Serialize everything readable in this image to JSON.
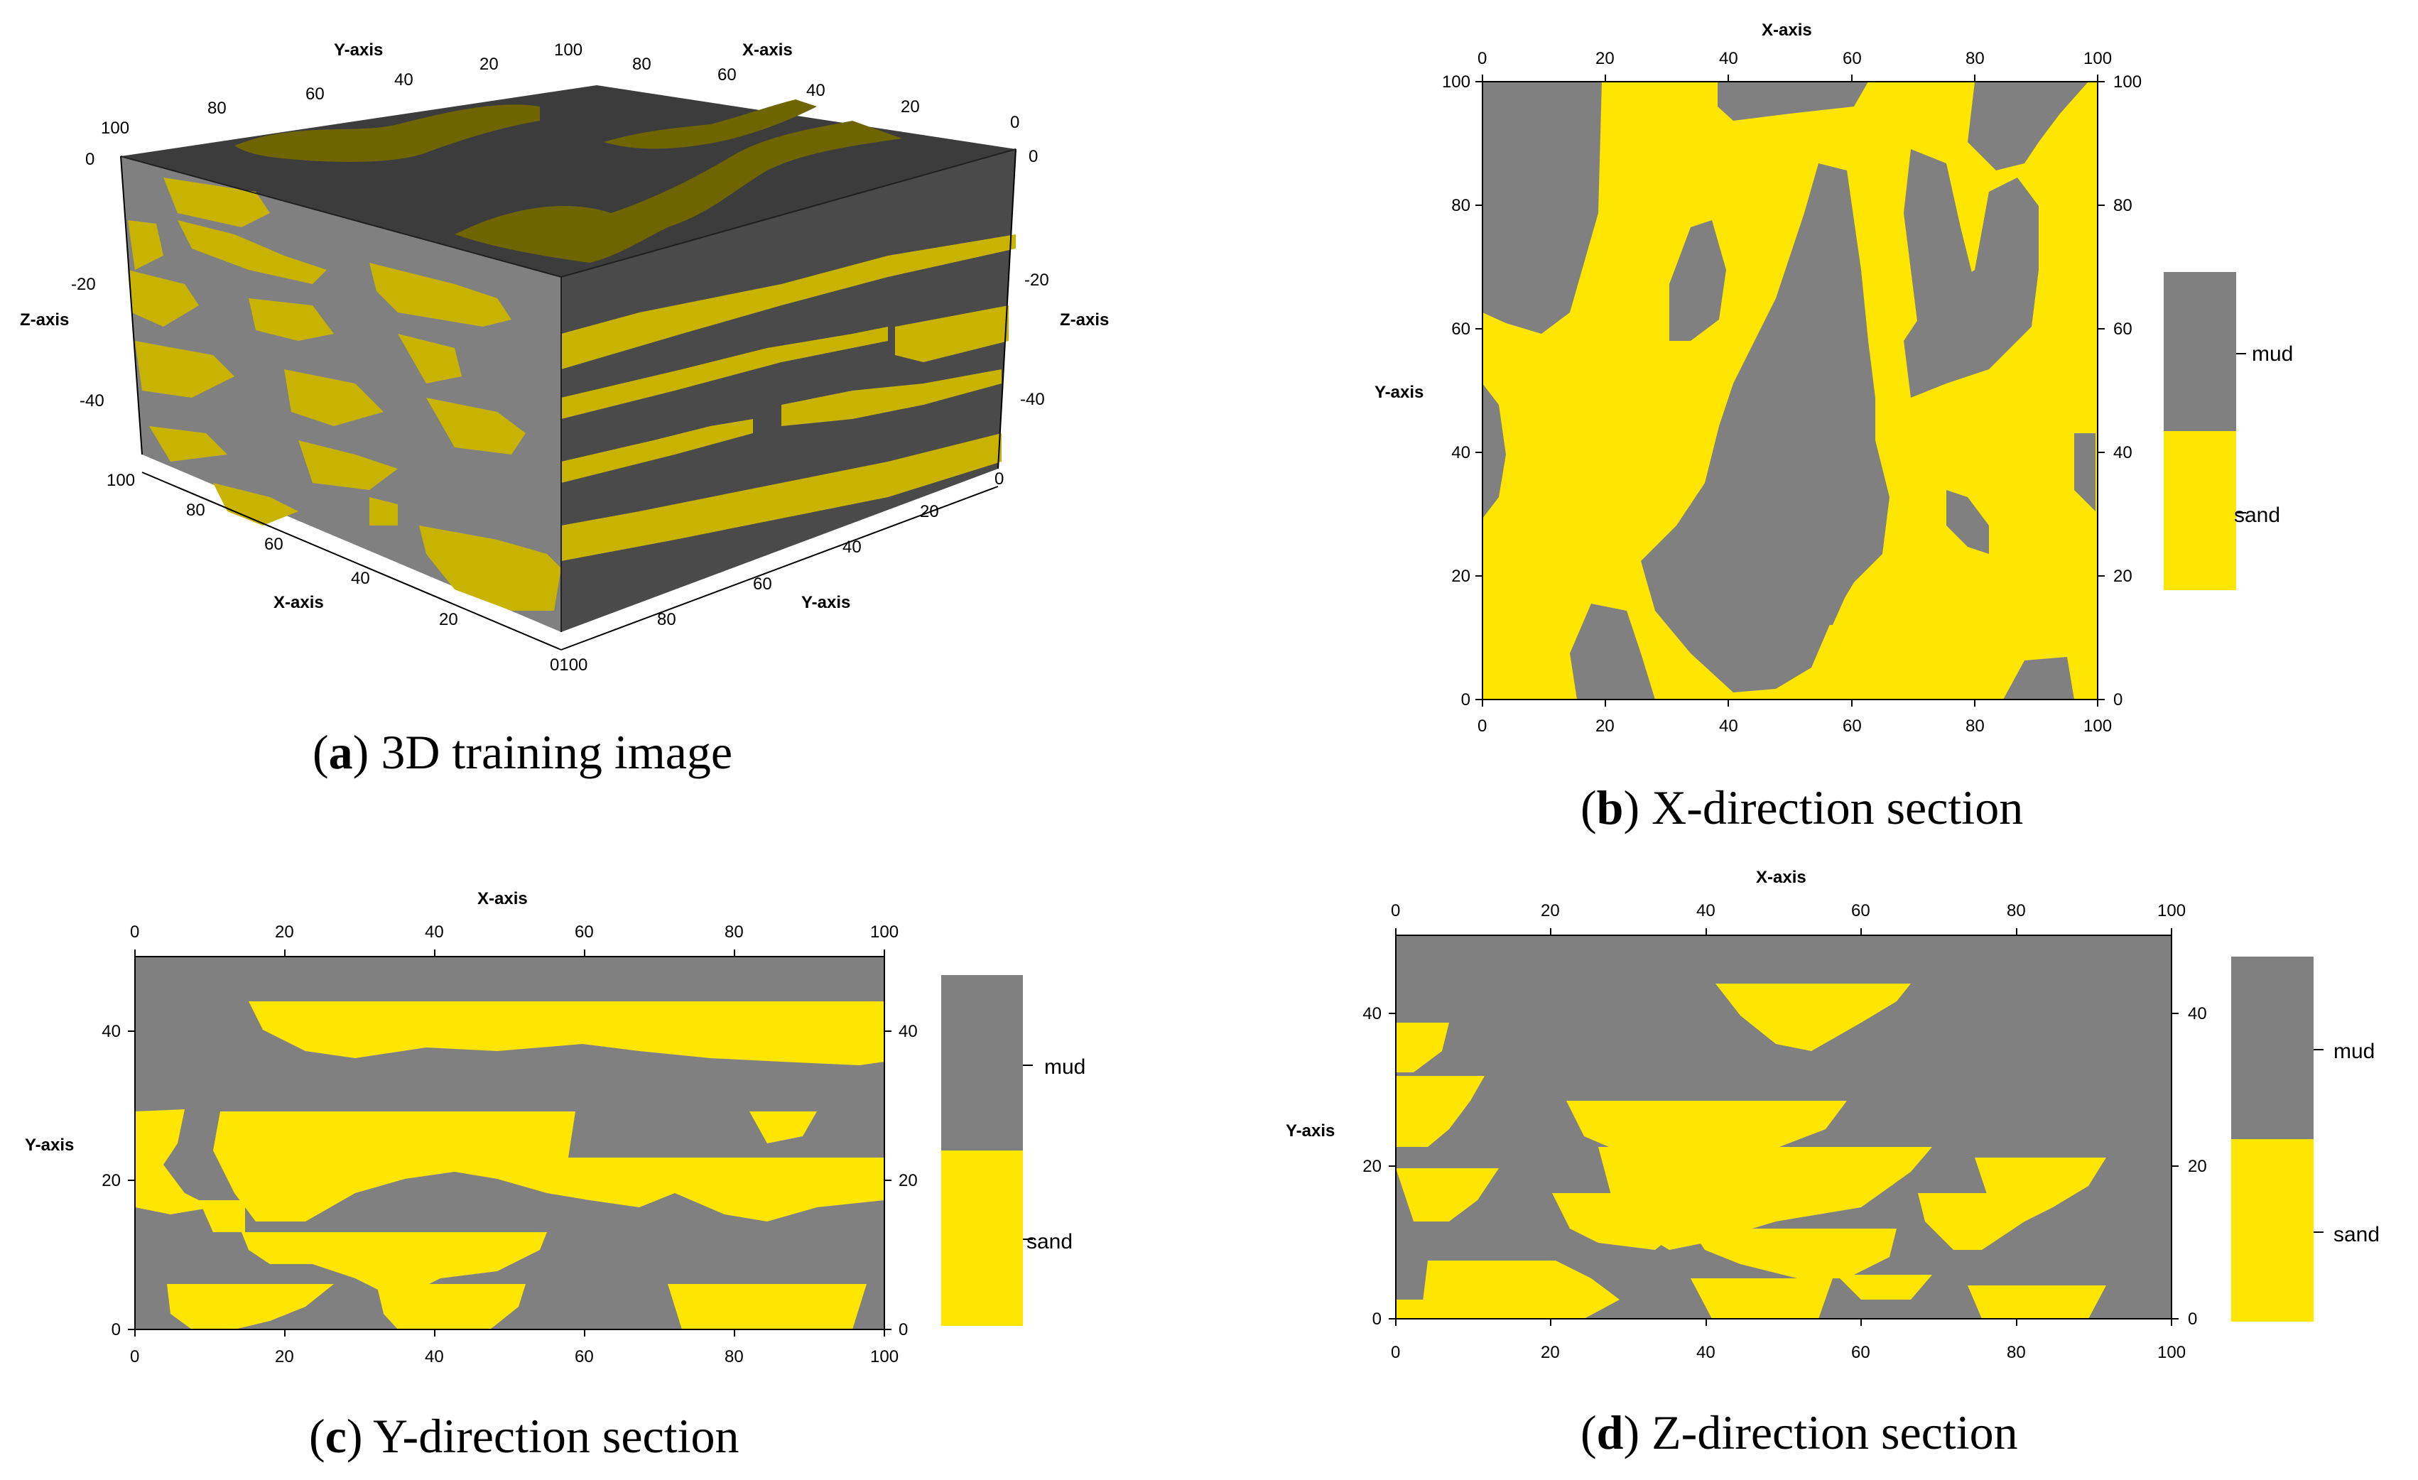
{
  "colors": {
    "sand": "#ffe600",
    "mud": "#808080",
    "sand_3d": "#c8b400",
    "mud_3d_top": "#3c3c3c",
    "mud_3d_side": "#4a4a4a"
  },
  "legend": {
    "mud": "mud",
    "sand": "sand"
  },
  "panels": [
    {
      "id": "a",
      "caption_letter": "a",
      "caption_text": " 3D training image",
      "axis_labels": {
        "x": "X-axis",
        "y": "Y-axis",
        "z": "Z-axis"
      },
      "top_y_ticks": [
        "100",
        "80",
        "60",
        "40",
        "20",
        "100"
      ],
      "top_x_ticks": [
        "80",
        "60",
        "40",
        "20",
        "0"
      ],
      "z_ticks_left": [
        "0",
        "-20",
        "-40"
      ],
      "z_ticks_right": [
        "0",
        "-20",
        "-40"
      ],
      "bottom_x_ticks": [
        "100",
        "80",
        "60",
        "40",
        "20",
        "0100"
      ],
      "bottom_y_ticks": [
        "80",
        "60",
        "40",
        "20",
        "0"
      ]
    },
    {
      "id": "b",
      "caption_letter": "b",
      "caption_text": " X-direction section",
      "xlabel": "X-axis",
      "ylabel": "Y-axis",
      "x_ticks": [
        "0",
        "20",
        "40",
        "60",
        "80",
        "100"
      ],
      "y_ticks": [
        "0",
        "20",
        "40",
        "60",
        "80",
        "100"
      ]
    },
    {
      "id": "c",
      "caption_letter": "c",
      "caption_text": " Y-direction section",
      "xlabel": "X-axis",
      "ylabel": "Y-axis",
      "x_ticks": [
        "0",
        "20",
        "40",
        "60",
        "80",
        "100"
      ],
      "y_ticks": [
        "0",
        "20",
        "40"
      ]
    },
    {
      "id": "d",
      "caption_letter": "d",
      "caption_text": " Z-direction section",
      "xlabel": "X-axis",
      "ylabel": "Y-axis",
      "x_ticks": [
        "0",
        "20",
        "40",
        "60",
        "80",
        "100"
      ],
      "y_ticks": [
        "0",
        "20",
        "40"
      ]
    }
  ]
}
